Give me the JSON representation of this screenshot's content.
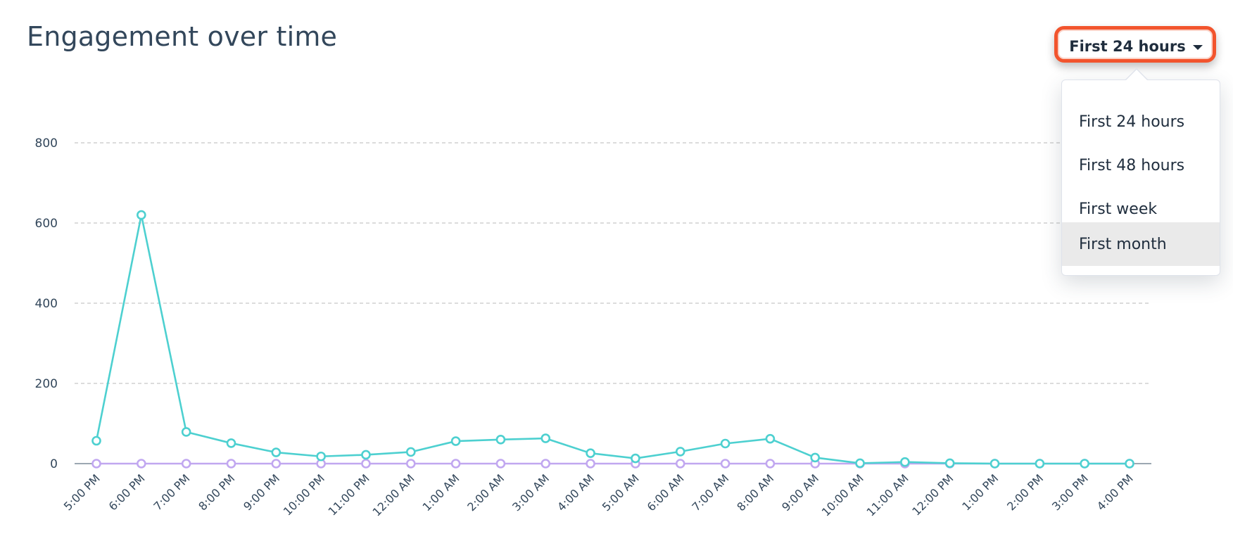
{
  "header": {
    "title": "Engagement over time"
  },
  "dropdown": {
    "selected_label": "First 24 hours",
    "options": [
      "First 24 hours",
      "First 48 hours",
      "First week",
      "First month"
    ],
    "hovered_index": 3
  },
  "colors": {
    "series_primary": "#4dd0d0",
    "series_secondary": "#c1a7f0",
    "highlight": "#f2542d"
  },
  "chart_data": {
    "type": "line",
    "title": "Engagement over time",
    "xlabel": "",
    "ylabel": "",
    "ylim": [
      0,
      800
    ],
    "yticks": [
      0,
      200,
      400,
      600,
      800
    ],
    "grid": true,
    "categories": [
      "5:00 PM",
      "6:00 PM",
      "7:00 PM",
      "8:00 PM",
      "9:00 PM",
      "10:00 PM",
      "11:00 PM",
      "12:00 AM",
      "1:00 AM",
      "2:00 AM",
      "3:00 AM",
      "4:00 AM",
      "5:00 AM",
      "6:00 AM",
      "7:00 AM",
      "8:00 AM",
      "9:00 AM",
      "10:00 AM",
      "11:00 AM",
      "12:00 PM",
      "1:00 PM",
      "2:00 PM",
      "3:00 PM",
      "4:00 PM"
    ],
    "series": [
      {
        "values": [
          57,
          620,
          79,
          51,
          28,
          18,
          22,
          29,
          56,
          60,
          63,
          26,
          13,
          30,
          50,
          62,
          15,
          1,
          4,
          1,
          0,
          0,
          0,
          0
        ],
        "color": "#4dd0d0"
      },
      {
        "values": [
          0,
          0,
          0,
          0,
          0,
          0,
          0,
          0,
          0,
          0,
          0,
          0,
          0,
          0,
          0,
          0,
          0,
          0,
          0,
          0,
          0,
          0,
          0,
          0
        ],
        "color": "#c1a7f0"
      }
    ]
  }
}
